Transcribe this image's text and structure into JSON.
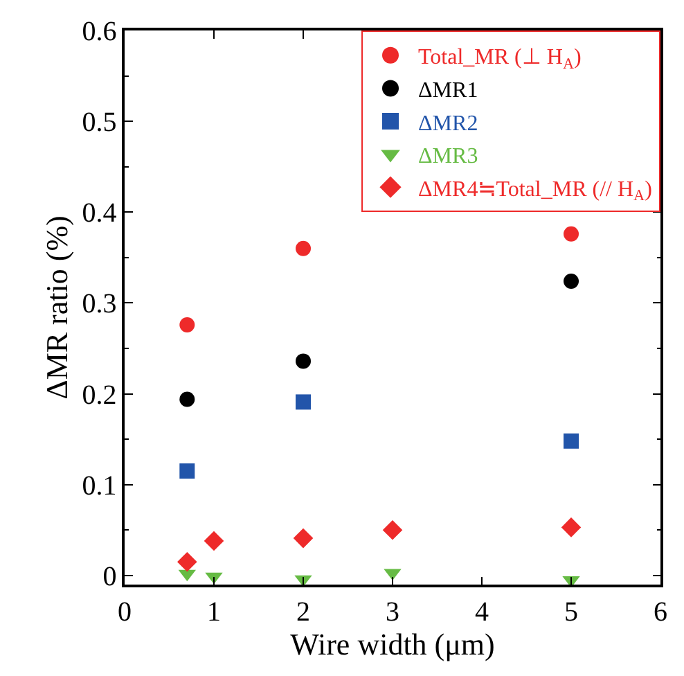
{
  "chart_data": {
    "type": "scatter",
    "xlabel": "Wire width (μm)",
    "ylabel": "ΔMR ratio (%)",
    "xlim": [
      0,
      6
    ],
    "xticks": [
      0,
      1,
      2,
      3,
      4,
      5,
      6
    ],
    "ylim": [
      -0.01,
      0.6
    ],
    "yticks": [
      0,
      0.1,
      0.2,
      0.3,
      0.4,
      0.5,
      0.6
    ],
    "legend": "top right",
    "series": [
      {
        "name": "Total_MR (⊥ H$_{A}$)",
        "color": "#ee2a2a",
        "marker": "circle",
        "x": [
          0.7,
          2,
          5
        ],
        "values": [
          0.276,
          0.36,
          0.376
        ]
      },
      {
        "name": "ΔMR1",
        "color": "#000000",
        "marker": "circle",
        "x": [
          0.7,
          2,
          5
        ],
        "values": [
          0.194,
          0.236,
          0.324
        ]
      },
      {
        "name": "ΔMR2",
        "color": "#2255aa",
        "marker": "square",
        "x": [
          0.7,
          2,
          5
        ],
        "values": [
          0.115,
          0.191,
          0.148
        ]
      },
      {
        "name": "ΔMR3",
        "color": "#66bb44",
        "marker": "triangle",
        "x": [
          0.7,
          1,
          2,
          3,
          5
        ],
        "values": [
          0.002,
          -0.001,
          -0.004,
          0.003,
          -0.005
        ]
      },
      {
        "name": "ΔMR4≒Total_MR (// H$_{A}$)",
        "color": "#ee2a2a",
        "marker": "diamond",
        "x": [
          0.7,
          1,
          2,
          3,
          5
        ],
        "values": [
          0.015,
          0.038,
          0.041,
          0.05,
          0.053
        ]
      }
    ]
  }
}
